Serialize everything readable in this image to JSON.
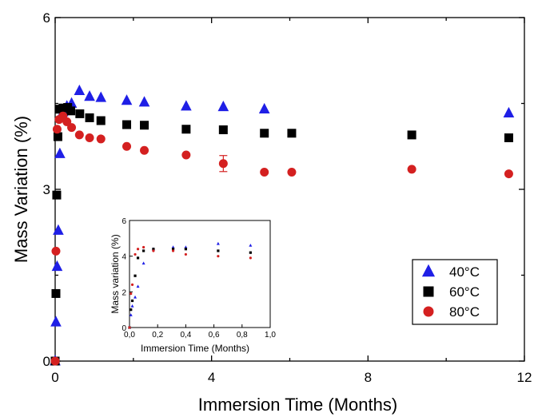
{
  "chart_data": [
    {
      "type": "scatter",
      "title": "",
      "xlabel": "Immersion Time (Months)",
      "ylabel": "Mass Variation (%)",
      "xlim": [
        0,
        12
      ],
      "ylim": [
        0,
        6
      ],
      "xticks": [
        0,
        4,
        8,
        12
      ],
      "yticks": [
        0,
        3,
        6
      ],
      "x_tick_labels": [
        "0",
        "4",
        "8",
        "12"
      ],
      "y_tick_labels": [
        "0",
        "3",
        "6"
      ],
      "grid": false,
      "legend_position": "bottom-right",
      "series": [
        {
          "name": "40°C",
          "marker": "triangle",
          "color": "#1f1fe6",
          "x": [
            0.0,
            0.02,
            0.05,
            0.08,
            0.12,
            0.2,
            0.3,
            0.42,
            0.62,
            0.88,
            1.17,
            1.83,
            2.28,
            3.35,
            4.3,
            5.35,
            11.6
          ],
          "y": [
            0.0,
            0.68,
            1.65,
            2.28,
            3.62,
            4.35,
            4.45,
            4.5,
            4.72,
            4.62,
            4.6,
            4.55,
            4.52,
            4.45,
            4.44,
            4.4,
            4.33
          ]
        },
        {
          "name": "60°C",
          "marker": "square",
          "color": "#000000",
          "x": [
            0.0,
            0.02,
            0.04,
            0.07,
            0.12,
            0.2,
            0.32,
            0.4,
            0.63,
            0.88,
            1.17,
            1.83,
            2.28,
            3.35,
            4.3,
            5.35,
            6.05,
            9.12,
            11.6
          ],
          "y": [
            0.0,
            1.18,
            2.9,
            3.92,
            4.4,
            4.42,
            4.43,
            4.37,
            4.32,
            4.25,
            4.2,
            4.13,
            4.12,
            4.05,
            4.04,
            3.98,
            3.98,
            3.95,
            3.9
          ]
        },
        {
          "name": "80°C",
          "marker": "circle",
          "color": "#d42020",
          "x": [
            0.0,
            0.02,
            0.05,
            0.1,
            0.2,
            0.3,
            0.42,
            0.62,
            0.88,
            1.17,
            1.83,
            2.28,
            3.35,
            4.3,
            5.35,
            6.05,
            9.12,
            11.6
          ],
          "y": [
            0.0,
            1.92,
            4.05,
            4.22,
            4.28,
            4.18,
            4.08,
            3.95,
            3.9,
            3.88,
            3.75,
            3.68,
            3.6,
            3.45,
            3.3,
            3.3,
            3.35,
            3.27
          ],
          "error": [
            0,
            0,
            0,
            0,
            0,
            0,
            0,
            0,
            0,
            0,
            0,
            0,
            0,
            0.14,
            0,
            0,
            0,
            0
          ]
        }
      ]
    },
    {
      "type": "scatter",
      "title": "",
      "xlabel": "Immersion Time (Months)",
      "ylabel": "Mass variation (%)",
      "xlim": [
        0,
        1
      ],
      "ylim": [
        0,
        6
      ],
      "xticks": [
        0,
        0.2,
        0.4,
        0.6,
        0.8,
        1.0
      ],
      "yticks": [
        0,
        2,
        4,
        6
      ],
      "x_tick_labels": [
        "0,0",
        "0,2",
        "0,4",
        "0,6",
        "0,8",
        "1,0"
      ],
      "y_tick_labels": [
        "0",
        "2",
        "4",
        "6"
      ],
      "grid": false,
      "series": [
        {
          "name": "40°C",
          "marker": "triangle",
          "color": "#1f1fe6",
          "x": [
            0.0,
            0.01,
            0.02,
            0.04,
            0.06,
            0.1,
            0.17,
            0.31,
            0.4,
            0.63,
            0.86
          ],
          "y": [
            0.0,
            0.7,
            1.2,
            1.7,
            2.3,
            3.6,
            4.4,
            4.5,
            4.5,
            4.7,
            4.6
          ]
        },
        {
          "name": "60°C",
          "marker": "square",
          "color": "#000000",
          "x": [
            0.0,
            0.01,
            0.02,
            0.04,
            0.06,
            0.1,
            0.17,
            0.31,
            0.4,
            0.63,
            0.86
          ],
          "y": [
            0.0,
            1.0,
            1.5,
            2.9,
            3.9,
            4.3,
            4.4,
            4.4,
            4.4,
            4.3,
            4.2
          ]
        },
        {
          "name": "80°C",
          "marker": "circle",
          "color": "#d42020",
          "x": [
            0.0,
            0.01,
            0.02,
            0.04,
            0.06,
            0.1,
            0.17,
            0.31,
            0.4,
            0.63,
            0.86
          ],
          "y": [
            0.0,
            1.9,
            2.4,
            4.1,
            4.4,
            4.5,
            4.3,
            4.3,
            4.1,
            4.0,
            3.9
          ]
        }
      ]
    }
  ]
}
